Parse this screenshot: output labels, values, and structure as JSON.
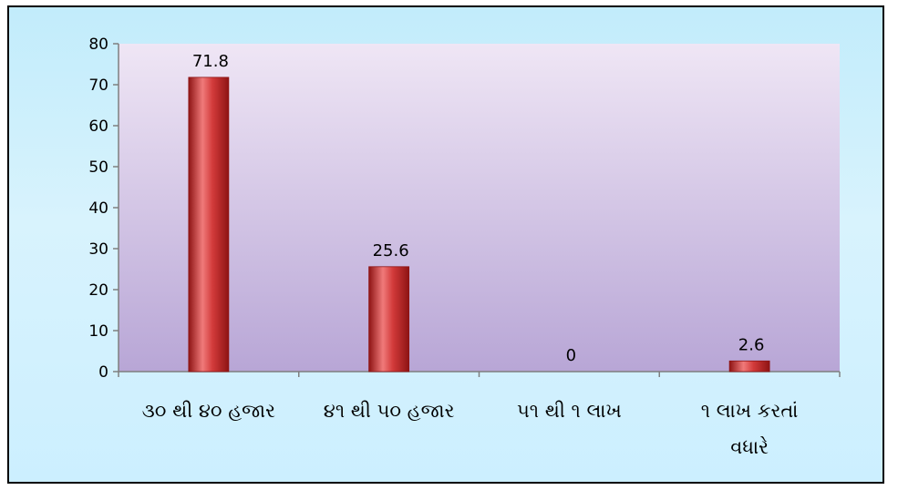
{
  "chart_data": {
    "type": "bar",
    "categories": [
      [
        "૩૦ થી ૪૦ હજાર"
      ],
      [
        "૪૧ થી ૫૦ હજાર"
      ],
      [
        "૫૧ થી ૧ લાખ"
      ],
      [
        "૧ લાખ કરતાં",
        "વધારે"
      ]
    ],
    "values": [
      71.8,
      25.6,
      0,
      2.6
    ],
    "value_labels": [
      "71.8",
      "25.6",
      "0",
      "2.6"
    ],
    "y_ticks": [
      "0",
      "10",
      "20",
      "30",
      "40",
      "50",
      "60",
      "70",
      "80"
    ],
    "ylim": [
      0,
      80
    ],
    "title": "",
    "xlabel": "",
    "ylabel": "",
    "legend": "none",
    "grid": false,
    "colors": {
      "bar": "#d23a3a",
      "bar_dark": "#8e1414",
      "bar_light": "#f07a7a",
      "plot_top": "#efe6f5",
      "plot_bottom": "#b8a6d6",
      "frame_top": "#c2ecfb",
      "frame_bottom": "#ccefff"
    }
  }
}
